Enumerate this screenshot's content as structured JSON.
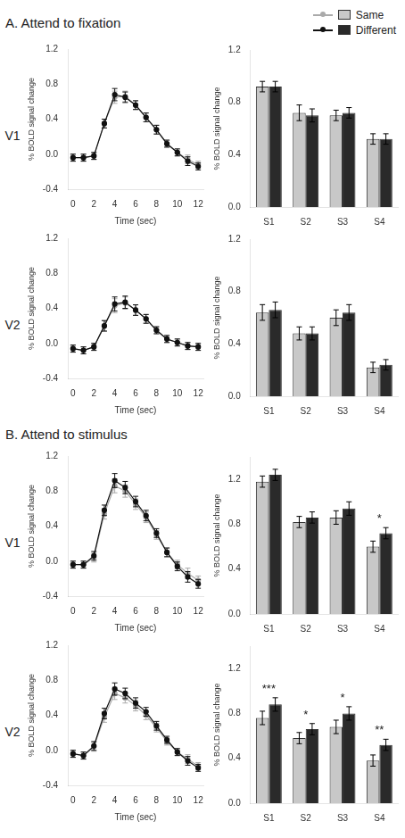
{
  "chart_data": [
    {
      "type": "line",
      "title": "A. Attend to fixation",
      "subtitle": "V1",
      "xlabel": "Time (sec)",
      "ylabel": "% BOLD signal change",
      "x": [
        0,
        1,
        2,
        3,
        4,
        5,
        6,
        7,
        8,
        9,
        10,
        11,
        12
      ],
      "xlim": [
        -0.5,
        12.5
      ],
      "xticks": [
        0,
        2,
        4,
        6,
        8,
        10,
        12
      ],
      "ylim": [
        -0.4,
        1.2
      ],
      "yticks": [
        -0.4,
        {
          "value": 0,
          "label": "0.0"
        },
        0.4,
        0.8,
        1.2
      ],
      "grid": false,
      "legend": "upper right",
      "series": [
        {
          "name": "Same",
          "color": "#aaaaaa",
          "marker": "circle",
          "values": [
            -0.04,
            -0.04,
            -0.02,
            0.35,
            0.65,
            0.66,
            0.56,
            0.42,
            0.28,
            0.12,
            0.02,
            -0.06,
            -0.12
          ],
          "errors": [
            0.04,
            0.04,
            0.04,
            0.05,
            0.07,
            0.06,
            0.05,
            0.05,
            0.05,
            0.04,
            0.04,
            0.05,
            0.04
          ]
        },
        {
          "name": "Different",
          "color": "#111111",
          "marker": "circle",
          "values": [
            -0.04,
            -0.04,
            -0.02,
            0.35,
            0.68,
            0.65,
            0.56,
            0.42,
            0.28,
            0.12,
            0.02,
            -0.08,
            -0.14
          ],
          "errors": [
            0.04,
            0.04,
            0.04,
            0.05,
            0.07,
            0.06,
            0.05,
            0.05,
            0.05,
            0.04,
            0.04,
            0.05,
            0.04
          ]
        }
      ]
    },
    {
      "type": "bar",
      "ylabel": "% BOLD signal change",
      "categories": [
        "S1",
        "S2",
        "S3",
        "S4"
      ],
      "ylim": [
        0,
        1.2
      ],
      "yticks": [
        {
          "value": 0,
          "label": "0.0"
        },
        0.4,
        0.8,
        1.2
      ],
      "grid": false,
      "legend": "upper right",
      "series": [
        {
          "name": "Same",
          "color": "#c8c8c8",
          "values": [
            0.92,
            0.72,
            0.7,
            0.52
          ],
          "errors": [
            0.04,
            0.06,
            0.04,
            0.04
          ]
        },
        {
          "name": "Different",
          "color": "#2a2a2a",
          "values": [
            0.92,
            0.7,
            0.72,
            0.52
          ],
          "errors": [
            0.04,
            0.05,
            0.04,
            0.04
          ]
        }
      ]
    },
    {
      "type": "line",
      "subtitle": "V2",
      "xlabel": "Time (sec)",
      "ylabel": "% BOLD signal change",
      "x": [
        0,
        1,
        2,
        3,
        4,
        5,
        6,
        7,
        8,
        9,
        10,
        11,
        12
      ],
      "xlim": [
        -0.5,
        12.5
      ],
      "xticks": [
        0,
        2,
        4,
        6,
        8,
        10,
        12
      ],
      "ylim": [
        -0.4,
        1.2
      ],
      "yticks": [
        -0.4,
        {
          "value": 0,
          "label": "0.0"
        },
        0.4,
        0.8,
        1.2
      ],
      "grid": false,
      "series": [
        {
          "name": "Same",
          "color": "#aaaaaa",
          "marker": "circle",
          "values": [
            -0.06,
            -0.08,
            -0.04,
            0.2,
            0.43,
            0.46,
            0.38,
            0.28,
            0.15,
            0.05,
            0.01,
            -0.03,
            -0.04
          ],
          "errors": [
            0.04,
            0.04,
            0.04,
            0.06,
            0.08,
            0.07,
            0.06,
            0.05,
            0.04,
            0.04,
            0.04,
            0.04,
            0.04
          ]
        },
        {
          "name": "Different",
          "color": "#111111",
          "marker": "circle",
          "values": [
            -0.06,
            -0.08,
            -0.04,
            0.2,
            0.45,
            0.47,
            0.38,
            0.28,
            0.15,
            0.05,
            0.01,
            -0.03,
            -0.04
          ],
          "errors": [
            0.04,
            0.04,
            0.04,
            0.06,
            0.08,
            0.07,
            0.06,
            0.05,
            0.04,
            0.04,
            0.04,
            0.04,
            0.04
          ]
        }
      ]
    },
    {
      "type": "bar",
      "ylabel": "% BOLD signal change",
      "categories": [
        "S1",
        "S2",
        "S3",
        "S4"
      ],
      "ylim": [
        0,
        1.2
      ],
      "yticks": [
        {
          "value": 0,
          "label": "0.0"
        },
        0.4,
        0.8,
        1.2
      ],
      "grid": false,
      "series": [
        {
          "name": "Same",
          "color": "#c8c8c8",
          "values": [
            0.64,
            0.48,
            0.6,
            0.22
          ],
          "errors": [
            0.06,
            0.05,
            0.06,
            0.04
          ]
        },
        {
          "name": "Different",
          "color": "#2a2a2a",
          "values": [
            0.66,
            0.48,
            0.64,
            0.24
          ],
          "errors": [
            0.06,
            0.05,
            0.06,
            0.04
          ]
        }
      ]
    },
    {
      "type": "line",
      "title": "B. Attend to stimulus",
      "subtitle": "V1",
      "xlabel": "Time (sec)",
      "ylabel": "% BOLD signal change",
      "x": [
        0,
        1,
        2,
        3,
        4,
        5,
        6,
        7,
        8,
        9,
        10,
        11,
        12
      ],
      "xlim": [
        -0.5,
        12.5
      ],
      "xticks": [
        0,
        2,
        4,
        6,
        8,
        10,
        12
      ],
      "ylim": [
        -0.4,
        1.2
      ],
      "yticks": [
        -0.4,
        {
          "value": 0,
          "label": "0.0"
        },
        0.4,
        0.8,
        1.2
      ],
      "grid": false,
      "series": [
        {
          "name": "Same",
          "color": "#aaaaaa",
          "marker": "circle",
          "values": [
            -0.04,
            -0.04,
            0.04,
            0.54,
            0.86,
            0.8,
            0.65,
            0.5,
            0.3,
            0.1,
            -0.04,
            -0.14,
            -0.22
          ],
          "errors": [
            0.04,
            0.04,
            0.05,
            0.06,
            0.08,
            0.07,
            0.06,
            0.06,
            0.05,
            0.05,
            0.05,
            0.06,
            0.05
          ]
        },
        {
          "name": "Different",
          "color": "#111111",
          "marker": "circle",
          "values": [
            -0.04,
            -0.04,
            0.06,
            0.58,
            0.92,
            0.84,
            0.68,
            0.52,
            0.32,
            0.1,
            -0.06,
            -0.18,
            -0.26
          ],
          "errors": [
            0.04,
            0.04,
            0.05,
            0.06,
            0.08,
            0.07,
            0.06,
            0.06,
            0.05,
            0.05,
            0.05,
            0.06,
            0.05
          ]
        }
      ]
    },
    {
      "type": "bar",
      "ylabel": "% BOLD signal change",
      "categories": [
        "S1",
        "S2",
        "S3",
        "S4"
      ],
      "ylim": [
        0,
        1.4
      ],
      "yticks": [
        {
          "value": 0,
          "label": "0.0"
        },
        0.4,
        0.8,
        1.2
      ],
      "grid": false,
      "annotations": [
        {
          "category": "S4",
          "text": "*"
        }
      ],
      "series": [
        {
          "name": "Same",
          "color": "#c8c8c8",
          "values": [
            1.18,
            0.82,
            0.86,
            0.6
          ],
          "errors": [
            0.05,
            0.05,
            0.06,
            0.05
          ]
        },
        {
          "name": "Different",
          "color": "#2a2a2a",
          "values": [
            1.24,
            0.86,
            0.94,
            0.72
          ],
          "errors": [
            0.05,
            0.05,
            0.06,
            0.05
          ]
        }
      ]
    },
    {
      "type": "line",
      "subtitle": "V2",
      "xlabel": "Time (sec)",
      "ylabel": "% BOLD signal change",
      "x": [
        0,
        1,
        2,
        3,
        4,
        5,
        6,
        7,
        8,
        9,
        10,
        11,
        12
      ],
      "xlim": [
        -0.5,
        12.5
      ],
      "xticks": [
        0,
        2,
        4,
        6,
        8,
        10,
        12
      ],
      "ylim": [
        -0.4,
        1.2
      ],
      "yticks": [
        -0.4,
        {
          "value": 0,
          "label": "0.0"
        },
        0.4,
        0.8,
        1.2
      ],
      "grid": false,
      "series": [
        {
          "name": "Same",
          "color": "#aaaaaa",
          "marker": "circle",
          "values": [
            -0.04,
            -0.06,
            0.04,
            0.38,
            0.65,
            0.6,
            0.51,
            0.4,
            0.26,
            0.1,
            -0.02,
            -0.1,
            -0.18
          ],
          "errors": [
            0.04,
            0.04,
            0.05,
            0.06,
            0.07,
            0.06,
            0.06,
            0.05,
            0.05,
            0.04,
            0.04,
            0.05,
            0.04
          ]
        },
        {
          "name": "Different",
          "color": "#111111",
          "marker": "circle",
          "values": [
            -0.04,
            -0.06,
            0.05,
            0.42,
            0.7,
            0.65,
            0.54,
            0.44,
            0.28,
            0.12,
            -0.02,
            -0.12,
            -0.2
          ],
          "errors": [
            0.04,
            0.04,
            0.05,
            0.06,
            0.07,
            0.06,
            0.06,
            0.05,
            0.05,
            0.04,
            0.04,
            0.05,
            0.04
          ]
        }
      ]
    },
    {
      "type": "bar",
      "ylabel": "% BOLD signal change",
      "categories": [
        "S1",
        "S2",
        "S3",
        "S4"
      ],
      "ylim": [
        0,
        1.4
      ],
      "yticks": [
        {
          "value": 0,
          "label": "0.0"
        },
        0.4,
        0.8,
        1.2
      ],
      "grid": false,
      "annotations": [
        {
          "category": "S1",
          "text": "***"
        },
        {
          "category": "S2",
          "text": "*"
        },
        {
          "category": "S3",
          "text": "*"
        },
        {
          "category": "S4",
          "text": "**"
        }
      ],
      "series": [
        {
          "name": "Same",
          "color": "#c8c8c8",
          "values": [
            0.76,
            0.58,
            0.68,
            0.38
          ],
          "errors": [
            0.06,
            0.05,
            0.06,
            0.05
          ]
        },
        {
          "name": "Different",
          "color": "#2a2a2a",
          "values": [
            0.88,
            0.66,
            0.8,
            0.52
          ],
          "errors": [
            0.06,
            0.05,
            0.06,
            0.05
          ]
        }
      ]
    }
  ]
}
